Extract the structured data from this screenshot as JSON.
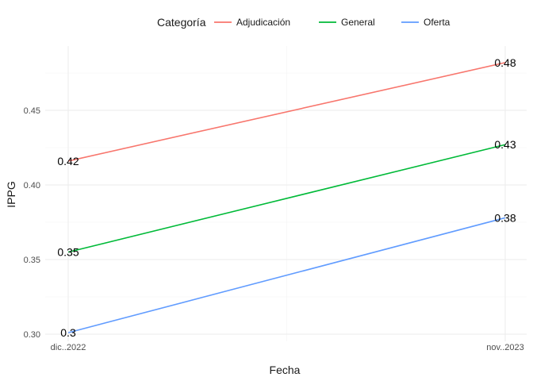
{
  "chart_data": {
    "type": "line",
    "title": "",
    "xlabel": "Fecha",
    "ylabel": "IPPG",
    "x": [
      "dic..2022",
      "nov..2023"
    ],
    "ylim": [
      0.295,
      0.49
    ],
    "y_ticks": [
      "0.30",
      "0.35",
      "0.40",
      "0.45"
    ],
    "grid": true,
    "legend": {
      "title": "Categoría",
      "position": "top"
    },
    "series": [
      {
        "name": "Adjudicación",
        "color": "#F8766D",
        "values": [
          0.416,
          0.482
        ],
        "labels": [
          "0.42",
          "0.48"
        ]
      },
      {
        "name": "General",
        "color": "#00BA38",
        "values": [
          0.355,
          0.427
        ],
        "labels": [
          "0.35",
          "0.43"
        ]
      },
      {
        "name": "Oferta",
        "color": "#619CFF",
        "values": [
          0.301,
          0.378
        ],
        "labels": [
          "0.3",
          "0.38"
        ]
      }
    ]
  }
}
